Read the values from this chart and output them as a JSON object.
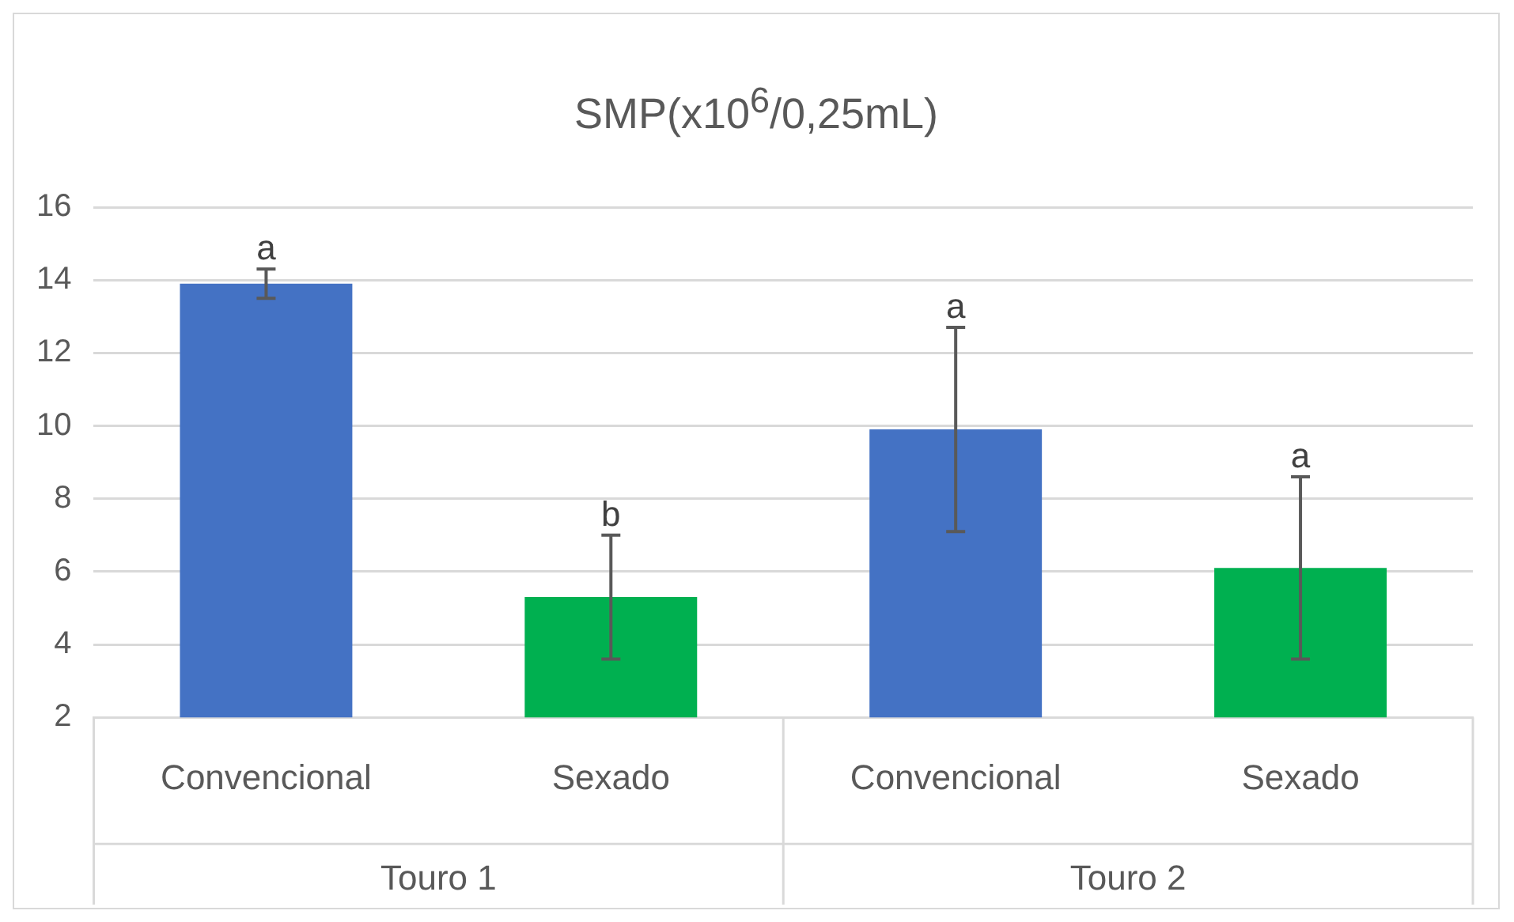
{
  "chart_data": {
    "type": "bar",
    "title": "SMP(x10$^{6}$/0,25mL)",
    "categories": [
      "Convencional",
      "Sexado",
      "Convencional",
      "Sexado"
    ],
    "values": [
      13.9,
      5.3,
      9.9,
      6.1
    ],
    "colors": [
      "#4472c4",
      "#00b050",
      "#4472c4",
      "#00b050"
    ],
    "errors": [
      0.4,
      1.7,
      2.8,
      2.5
    ],
    "value_labels": [
      "a",
      "b",
      "a",
      "a"
    ],
    "annotations": [
      "Touro 1",
      "Touro 2"
    ],
    "ylim": [
      2,
      16
    ],
    "yticks": [
      2,
      4,
      6,
      8,
      10,
      12,
      14,
      16
    ],
    "grid": "y",
    "legend": false
  }
}
